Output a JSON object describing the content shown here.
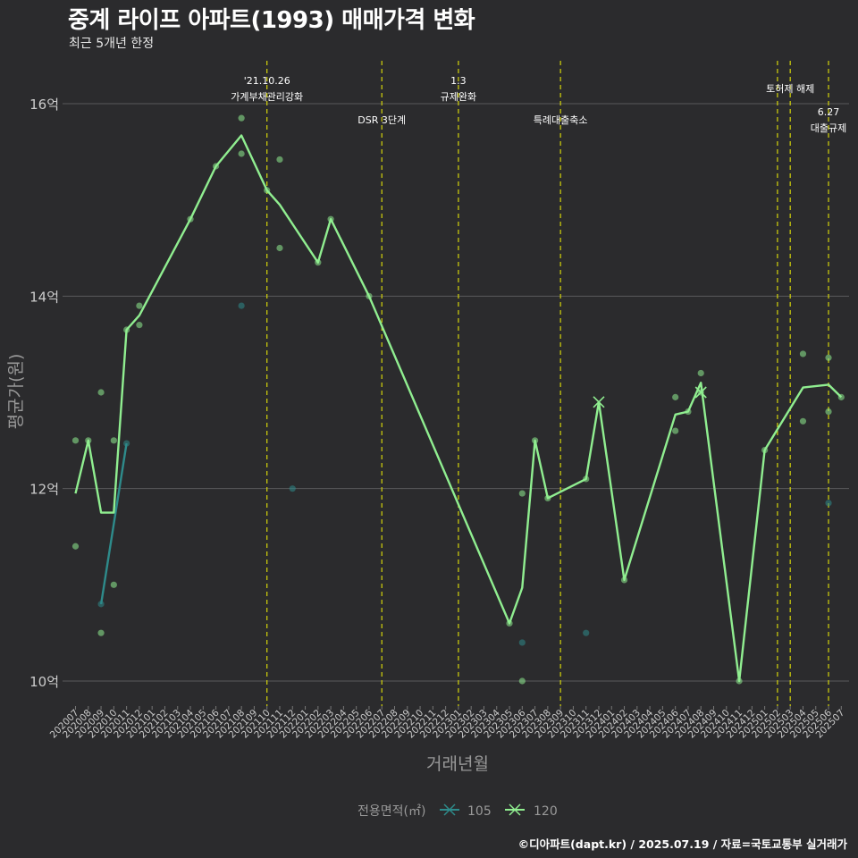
{
  "header": {
    "title": "중계 라이프 아파트(1993) 매매가격 변화",
    "subtitle": "최근 5개년 한정"
  },
  "footer": {
    "caption": "©디아파트(dapt.kr) / 2025.07.19 / 자료=국토교통부 실거래가"
  },
  "colors": {
    "background": "#2b2b2d",
    "grid": "#5a5a5c",
    "s105": "#2e8b8b",
    "s120": "#90ee90",
    "event": "#d4d40a",
    "text": "#dddddd"
  },
  "chart_data": {
    "type": "line",
    "title": "중계 라이프 아파트(1993) 매매가격 변화",
    "subtitle": "최근 5개년 한정",
    "xlabel": "거래년월",
    "ylabel": "평균가(원)",
    "ylim": [
      9.75,
      16.3
    ],
    "y_ticks": [
      {
        "value": 10,
        "label": "10억"
      },
      {
        "value": 12,
        "label": "12억"
      },
      {
        "value": 14,
        "label": "14억"
      },
      {
        "value": 16,
        "label": "16억"
      }
    ],
    "categories": [
      "202007",
      "202008",
      "202009",
      "202010",
      "202011",
      "202012",
      "202101",
      "202102",
      "202103",
      "202104",
      "202105",
      "202106",
      "202107",
      "202108",
      "202109",
      "202110",
      "202111",
      "202112",
      "202201",
      "202202",
      "202203",
      "202204",
      "202205",
      "202206",
      "202207",
      "202208",
      "202209",
      "202210",
      "202211",
      "202212",
      "202301",
      "202302",
      "202303",
      "202304",
      "202305",
      "202306",
      "202307",
      "202308",
      "202309",
      "202310",
      "202311",
      "202312",
      "202401",
      "202402",
      "202403",
      "202404",
      "202405",
      "202406",
      "202407",
      "202408",
      "202409",
      "202410",
      "202411",
      "202412",
      "202501",
      "202502",
      "202503",
      "202504",
      "202505",
      "202506",
      "202507"
    ],
    "legend_title": "전용면적(㎡)",
    "series": [
      {
        "name": "105",
        "color": "#2e8b8b",
        "line": [
          {
            "x": "202009",
            "y": 10.8
          },
          {
            "x": "202011",
            "y": 12.47
          }
        ],
        "points": [
          {
            "x": "202009",
            "y": 10.8
          },
          {
            "x": "202011",
            "y": 12.47
          },
          {
            "x": "202108",
            "y": 13.9
          },
          {
            "x": "202112",
            "y": 12.0
          },
          {
            "x": "202306",
            "y": 10.4
          },
          {
            "x": "202311",
            "y": 10.5
          },
          {
            "x": "202506",
            "y": 11.85
          }
        ]
      },
      {
        "name": "120",
        "color": "#90ee90",
        "line": [
          {
            "x": "202007",
            "y": 11.95
          },
          {
            "x": "202008",
            "y": 12.5
          },
          {
            "x": "202009",
            "y": 11.75
          },
          {
            "x": "202010",
            "y": 11.75
          },
          {
            "x": "202011",
            "y": 13.65
          },
          {
            "x": "202012",
            "y": 13.8
          },
          {
            "x": "202104",
            "y": 14.8
          },
          {
            "x": "202106",
            "y": 15.35
          },
          {
            "x": "202108",
            "y": 15.67
          },
          {
            "x": "202110",
            "y": 15.1
          },
          {
            "x": "202111",
            "y": 14.95
          },
          {
            "x": "202202",
            "y": 14.35
          },
          {
            "x": "202203",
            "y": 14.8
          },
          {
            "x": "202206",
            "y": 14.0
          },
          {
            "x": "202305",
            "y": 10.6
          },
          {
            "x": "202306",
            "y": 10.97
          },
          {
            "x": "202307",
            "y": 12.5
          },
          {
            "x": "202308",
            "y": 11.9
          },
          {
            "x": "202311",
            "y": 12.1
          },
          {
            "x": "202312",
            "y": 12.9
          },
          {
            "x": "202402",
            "y": 11.05
          },
          {
            "x": "202406",
            "y": 12.77
          },
          {
            "x": "202407",
            "y": 12.8
          },
          {
            "x": "202408",
            "y": 13.1
          },
          {
            "x": "202411",
            "y": 10.0
          },
          {
            "x": "202501",
            "y": 12.4
          },
          {
            "x": "202504",
            "y": 13.05
          },
          {
            "x": "202506",
            "y": 13.08
          },
          {
            "x": "202507",
            "y": 12.95
          }
        ],
        "points": [
          {
            "x": "202007",
            "y": 12.5
          },
          {
            "x": "202007",
            "y": 11.4
          },
          {
            "x": "202008",
            "y": 12.5
          },
          {
            "x": "202009",
            "y": 13.0
          },
          {
            "x": "202009",
            "y": 10.5
          },
          {
            "x": "202010",
            "y": 12.5
          },
          {
            "x": "202010",
            "y": 11.0
          },
          {
            "x": "202011",
            "y": 13.65
          },
          {
            "x": "202012",
            "y": 13.9
          },
          {
            "x": "202012",
            "y": 13.7
          },
          {
            "x": "202104",
            "y": 14.8
          },
          {
            "x": "202106",
            "y": 15.35
          },
          {
            "x": "202108",
            "y": 15.85
          },
          {
            "x": "202108",
            "y": 15.48
          },
          {
            "x": "202110",
            "y": 15.1
          },
          {
            "x": "202111",
            "y": 15.42
          },
          {
            "x": "202111",
            "y": 14.5
          },
          {
            "x": "202202",
            "y": 14.35
          },
          {
            "x": "202203",
            "y": 14.8
          },
          {
            "x": "202206",
            "y": 14.0
          },
          {
            "x": "202305",
            "y": 10.6
          },
          {
            "x": "202306",
            "y": 11.95
          },
          {
            "x": "202306",
            "y": 10.0
          },
          {
            "x": "202307",
            "y": 12.5
          },
          {
            "x": "202308",
            "y": 11.9
          },
          {
            "x": "202311",
            "y": 12.1
          },
          {
            "x": "202402",
            "y": 11.05
          },
          {
            "x": "202406",
            "y": 12.95
          },
          {
            "x": "202406",
            "y": 12.6
          },
          {
            "x": "202407",
            "y": 12.8
          },
          {
            "x": "202408",
            "y": 13.2
          },
          {
            "x": "202408",
            "y": 13.0
          },
          {
            "x": "202411",
            "y": 10.0
          },
          {
            "x": "202501",
            "y": 12.4
          },
          {
            "x": "202504",
            "y": 13.4
          },
          {
            "x": "202504",
            "y": 12.7
          },
          {
            "x": "202506",
            "y": 13.36
          },
          {
            "x": "202506",
            "y": 12.8
          },
          {
            "x": "202507",
            "y": 12.95
          }
        ],
        "markers": [
          {
            "x": "202312",
            "y": 12.9
          },
          {
            "x": "202408",
            "y": 13.0
          }
        ]
      }
    ],
    "events": [
      {
        "x": "202110",
        "lines": [
          "'21.10.26",
          "가계부채관리강화"
        ],
        "row": "top"
      },
      {
        "x": "202207",
        "lines": [
          "DSR 3단계"
        ],
        "row": "bottom"
      },
      {
        "x": "202301",
        "lines": [
          "1.3",
          "규제완화"
        ],
        "row": "top"
      },
      {
        "x": "202309",
        "lines": [
          "특례대출축소"
        ],
        "row": "bottom"
      },
      {
        "x": "202502",
        "lines": [],
        "row": "none"
      },
      {
        "x": "202503",
        "lines": [
          "토허제 해제"
        ],
        "row": "mid"
      },
      {
        "x": "202506",
        "lines": [
          "6.27",
          "대출규제"
        ],
        "row": "low"
      }
    ]
  }
}
